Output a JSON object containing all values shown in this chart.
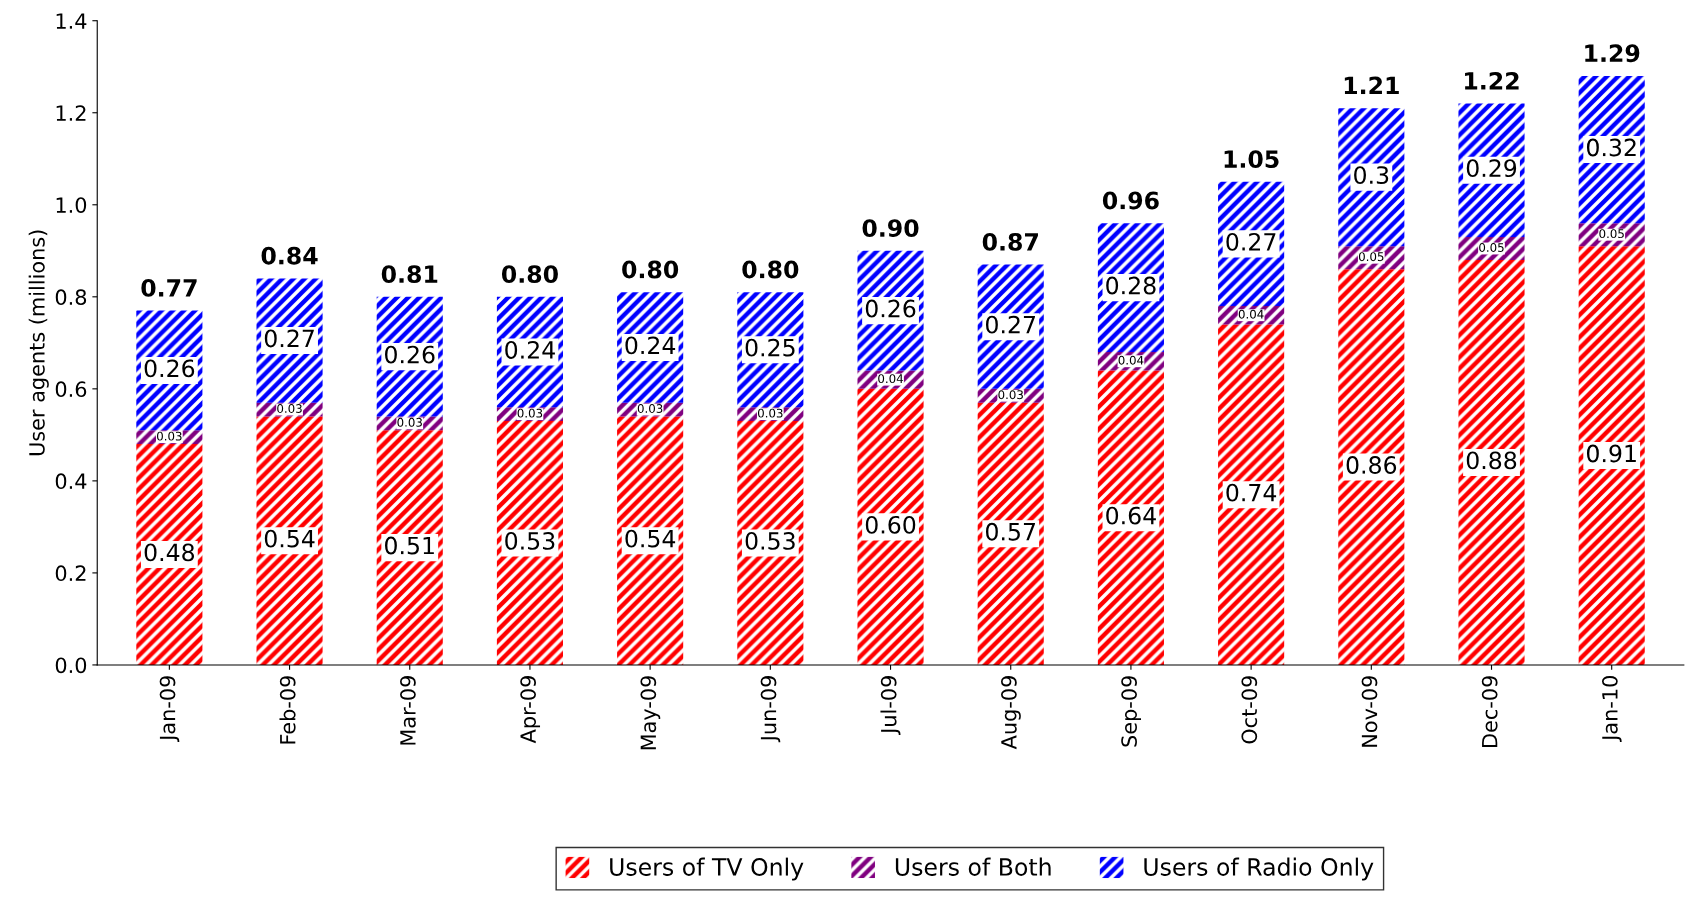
{
  "chart_data": {
    "type": "bar",
    "stacked": true,
    "ylabel": "User agents (millions)",
    "categories": [
      "Jan-09",
      "Feb-09",
      "Mar-09",
      "Apr-09",
      "May-09",
      "Jun-09",
      "Jul-09",
      "Aug-09",
      "Sep-09",
      "Oct-09",
      "Nov-09",
      "Dec-09",
      "Jan-10"
    ],
    "series": [
      {
        "name": "Users of TV Only",
        "color": "#ff0000",
        "values": [
          0.48,
          0.54,
          0.51,
          0.53,
          0.54,
          0.53,
          0.6,
          0.57,
          0.64,
          0.74,
          0.86,
          0.88,
          0.91
        ],
        "value_labels": [
          "0.48",
          "0.54",
          "0.51",
          "0.53",
          "0.54",
          "0.53",
          "0.60",
          "0.57",
          "0.64",
          "0.74",
          "0.86",
          "0.88",
          "0.91"
        ]
      },
      {
        "name": "Users of Both",
        "color": "#800080",
        "values": [
          0.03,
          0.03,
          0.03,
          0.03,
          0.03,
          0.03,
          0.04,
          0.03,
          0.04,
          0.04,
          0.05,
          0.05,
          0.05
        ],
        "value_labels": [
          "0.03",
          "0.03",
          "0.03",
          "0.03",
          "0.03",
          "0.03",
          "0.04",
          "0.03",
          "0.04",
          "0.04",
          "0.05",
          "0.05",
          "0.05"
        ]
      },
      {
        "name": "Users of Radio Only",
        "color": "#0000ff",
        "values": [
          0.26,
          0.27,
          0.26,
          0.24,
          0.24,
          0.25,
          0.26,
          0.27,
          0.28,
          0.27,
          0.3,
          0.29,
          0.32
        ],
        "value_labels": [
          "0.26",
          "0.27",
          "0.26",
          "0.24",
          "0.24",
          "0.25",
          "0.26",
          "0.27",
          "0.28",
          "0.27",
          "0.3",
          "0.29",
          "0.32"
        ]
      }
    ],
    "totals": [
      "0.77",
      "0.84",
      "0.81",
      "0.80",
      "0.80",
      "0.80",
      "0.90",
      "0.87",
      "0.96",
      "1.05",
      "1.21",
      "1.22",
      "1.29"
    ],
    "ylim": [
      0,
      1.4
    ],
    "yticks": [
      {
        "value": 0,
        "label": "0.0"
      },
      {
        "value": 0.2,
        "label": "0.2"
      },
      {
        "value": 0.4,
        "label": "0.4"
      },
      {
        "value": 0.6,
        "label": "0.6"
      },
      {
        "value": 0.8,
        "label": "0.8"
      },
      {
        "value": 1.0,
        "label": "1.0"
      },
      {
        "value": 1.2,
        "label": "1.2"
      },
      {
        "value": 1.4,
        "label": "1.4"
      }
    ],
    "grid": false,
    "legend": "bottom"
  }
}
